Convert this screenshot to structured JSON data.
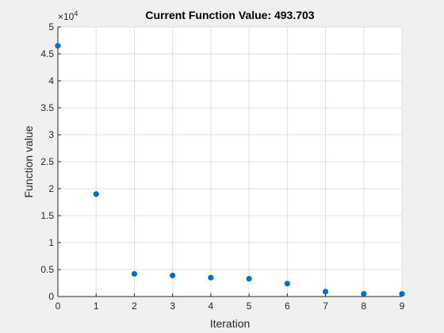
{
  "chart_data": {
    "type": "scatter",
    "title": "Current Function Value: 493.703",
    "xlabel": "Iteration",
    "ylabel": "Function value",
    "exponent_label": "×10",
    "exponent_power": "4",
    "xlim": [
      0,
      9
    ],
    "ylim": [
      0,
      5
    ],
    "xticks": [
      "0",
      "1",
      "2",
      "3",
      "4",
      "5",
      "6",
      "7",
      "8",
      "9"
    ],
    "yticks": [
      "0",
      "0.5",
      "1",
      "1.5",
      "2",
      "2.5",
      "3",
      "3.5",
      "4",
      "4.5",
      "5"
    ],
    "grid": true,
    "marker_color": "#0072bd",
    "x": [
      0,
      1,
      2,
      3,
      4,
      5,
      6,
      7,
      8,
      9
    ],
    "y": [
      4.65,
      1.9,
      0.42,
      0.39,
      0.35,
      0.33,
      0.24,
      0.09,
      0.05,
      0.049
    ]
  }
}
